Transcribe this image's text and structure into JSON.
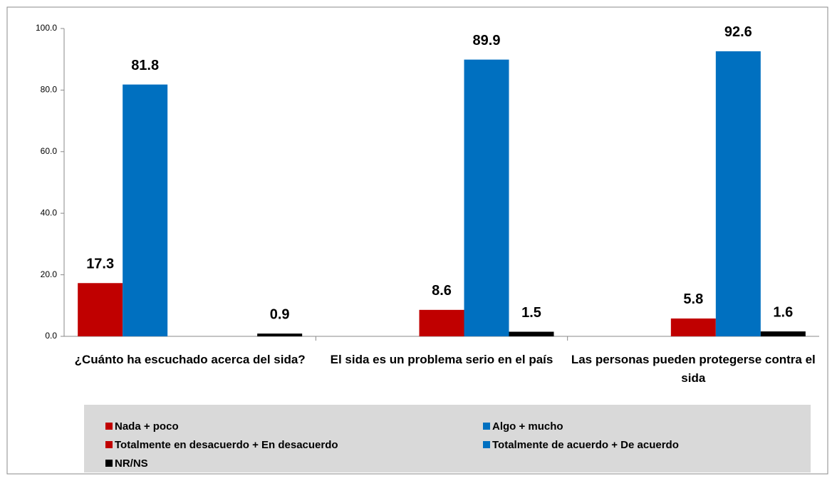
{
  "chart_data": {
    "type": "bar",
    "categories": [
      "¿Cuánto ha escuchado acerca del sida?",
      "El sida es un problema serio en el país",
      "Las personas pueden protegerse contra el sida"
    ],
    "series": [
      {
        "name": "Nada + poco",
        "color": "#c00000",
        "values": [
          17.3,
          null,
          null
        ]
      },
      {
        "name": "Algo + mucho",
        "color": "#0070c0",
        "values": [
          81.8,
          null,
          null
        ]
      },
      {
        "name": "Totalmente en desacuerdo + En desacuerdo",
        "color": "#c00000",
        "values": [
          null,
          8.6,
          5.8
        ]
      },
      {
        "name": "Totalmente de acuerdo + De acuerdo",
        "color": "#0070c0",
        "values": [
          null,
          89.9,
          92.6
        ]
      },
      {
        "name": "NR/NS",
        "color": "#000000",
        "values": [
          0.9,
          1.5,
          1.6
        ]
      }
    ],
    "ylim": [
      0,
      100
    ],
    "yticks": [
      {
        "value": 0,
        "label": "0.0"
      },
      {
        "value": 20,
        "label": "20.0"
      },
      {
        "value": 40,
        "label": "40.0"
      },
      {
        "value": 60,
        "label": "60.0"
      },
      {
        "value": 80,
        "label": "80.0"
      },
      {
        "value": 100,
        "label": "100.0"
      }
    ],
    "legend": "bottom"
  }
}
